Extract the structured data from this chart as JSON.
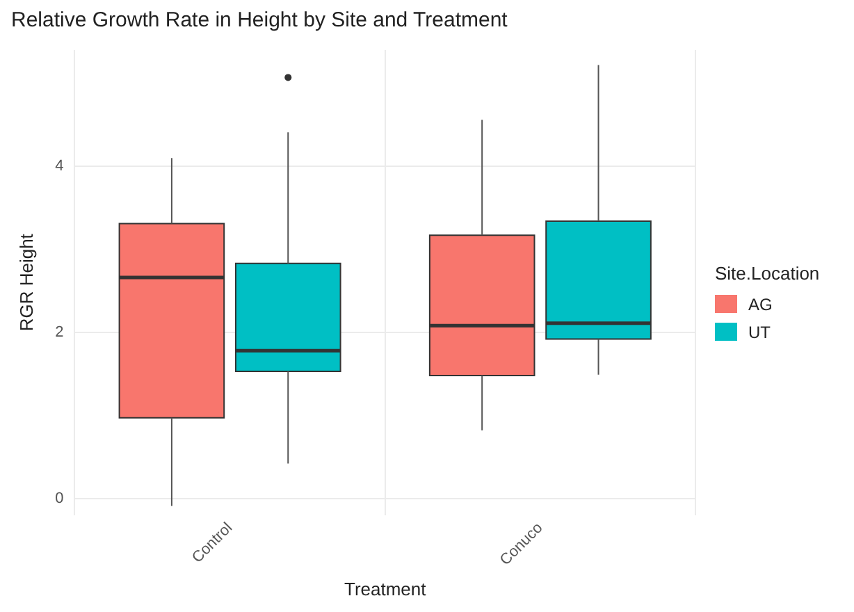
{
  "chart_data": {
    "type": "box",
    "title": "Relative Growth Rate in Height by Site and Treatment",
    "xlabel": "Treatment",
    "ylabel": "RGR Height",
    "legend_title": "Site.Location",
    "legend": "right",
    "grid": true,
    "categories": [
      "Control",
      "Conuco"
    ],
    "ylim": [
      -0.2,
      5.4
    ],
    "yticks": [
      0,
      2,
      4
    ],
    "series": [
      {
        "name": "AG",
        "color": "#f8766d",
        "boxes": [
          {
            "low": -0.09,
            "q1": 0.97,
            "median": 2.66,
            "q3": 3.31,
            "high": 4.1
          },
          {
            "low": 0.82,
            "q1": 1.48,
            "median": 2.08,
            "q3": 3.17,
            "high": 4.56
          }
        ]
      },
      {
        "name": "UT",
        "color": "#00bfc4",
        "boxes": [
          {
            "low": 0.42,
            "q1": 1.53,
            "median": 1.78,
            "q3": 2.83,
            "high": 4.41,
            "outliers": [
              5.07
            ]
          },
          {
            "low": 1.49,
            "q1": 1.92,
            "median": 2.11,
            "q3": 3.34,
            "high": 5.22
          }
        ]
      }
    ]
  }
}
